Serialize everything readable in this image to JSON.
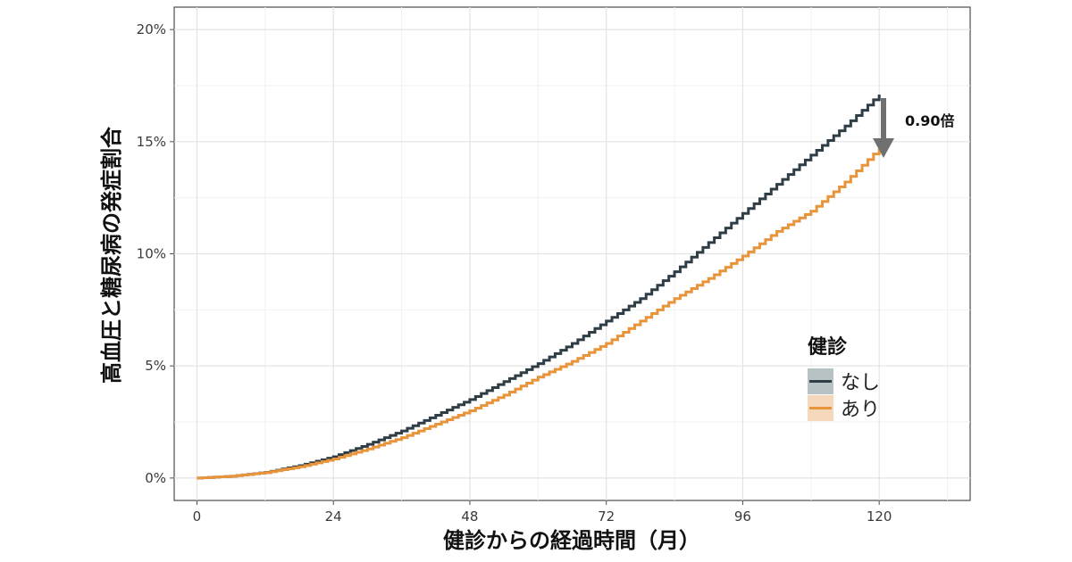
{
  "chart_data": {
    "type": "line",
    "xlabel": "健診からの経過時間（月）",
    "ylabel": "高血圧と糖尿病の発症割合",
    "x_ticks": [
      "0",
      "24",
      "48",
      "72",
      "96",
      "120"
    ],
    "y_ticks": [
      "0%",
      "5%",
      "10%",
      "15%",
      "20%"
    ],
    "xlim": [
      -4,
      136
    ],
    "ylim": [
      -1,
      21
    ],
    "grid": true,
    "legend": {
      "title": "健診",
      "placement": "right",
      "entries": [
        "なし",
        "あり"
      ]
    },
    "x": [
      0,
      6,
      12,
      18,
      24,
      30,
      36,
      42,
      48,
      54,
      60,
      66,
      72,
      78,
      84,
      90,
      96,
      102,
      108,
      114,
      120
    ],
    "series": [
      {
        "name": "なし",
        "color": "#2f3e46",
        "values": [
          0,
          0.08,
          0.25,
          0.55,
          0.95,
          1.5,
          2.1,
          2.8,
          3.5,
          4.3,
          5.1,
          6.0,
          7.0,
          8.0,
          9.2,
          10.5,
          11.8,
          13.1,
          14.4,
          15.7,
          17.1
        ]
      },
      {
        "name": "あり",
        "color": "#e8943a",
        "values": [
          0,
          0.08,
          0.24,
          0.5,
          0.85,
          1.3,
          1.8,
          2.4,
          3.0,
          3.7,
          4.5,
          5.2,
          6.0,
          7.0,
          8.0,
          8.9,
          9.9,
          11.0,
          11.9,
          13.2,
          14.7
        ]
      }
    ],
    "annotations": [
      {
        "text": "0.90倍",
        "arrow": "down",
        "x": 120,
        "y_from": 17.1,
        "y_to": 14.7
      }
    ]
  }
}
